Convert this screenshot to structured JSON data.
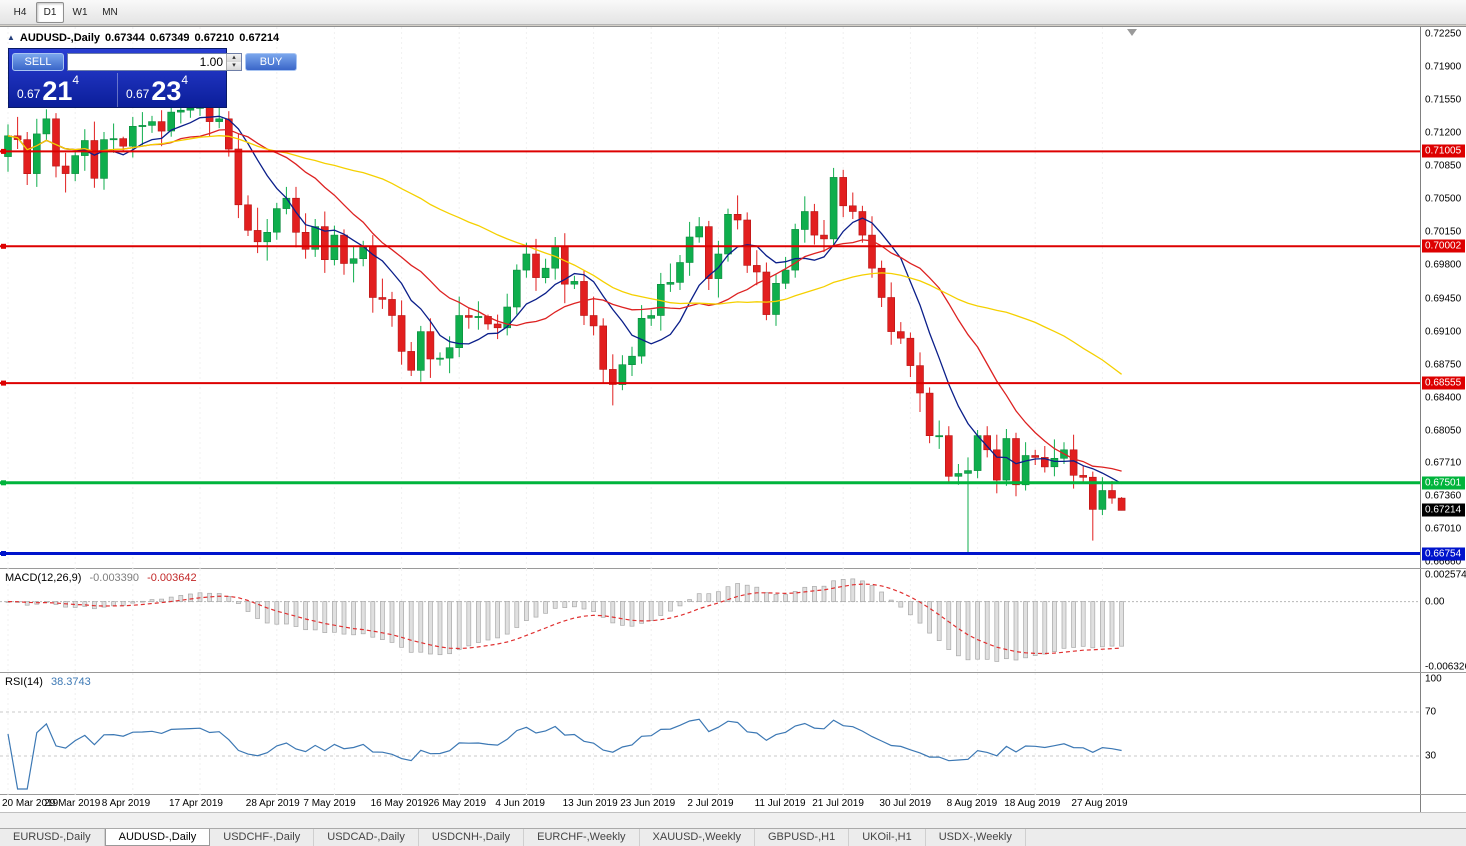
{
  "toolbar": {
    "timeframes": [
      {
        "label": "H4",
        "active": false
      },
      {
        "label": "D1",
        "active": true
      },
      {
        "label": "W1",
        "active": false
      },
      {
        "label": "MN",
        "active": false
      }
    ]
  },
  "icons": {
    "collapse_triangle": "▲",
    "volume_up": "▴",
    "volume_down": "▾"
  },
  "price_chart": {
    "title_symbol": "AUDUSD-,Daily",
    "title_open": "0.67344",
    "title_high": "0.67349",
    "title_low": "0.67210",
    "title_close": "0.67214",
    "axis_ticks": [
      "0.72250",
      "0.71900",
      "0.71550",
      "0.71200",
      "0.70850",
      "0.70500",
      "0.70150",
      "0.69800",
      "0.69450",
      "0.69100",
      "0.68750",
      "0.68400",
      "0.68050",
      "0.67710",
      "0.67360",
      "0.67010",
      "0.66660"
    ],
    "levels": [
      {
        "price": "0.71005",
        "color": "#dd0000",
        "thickness": 2
      },
      {
        "price": "0.70002",
        "color": "#dd0000",
        "thickness": 2
      },
      {
        "price": "0.68555",
        "color": "#dd0000",
        "thickness": 2
      },
      {
        "price": "0.67501",
        "color": "#00b43c",
        "thickness": 3
      },
      {
        "price": "0.66754",
        "color": "#0014cc",
        "thickness": 3
      }
    ],
    "current_price": {
      "label": "0.67214",
      "bg": "#000000"
    }
  },
  "trade_panel": {
    "sell_label": "SELL",
    "buy_label": "BUY",
    "volume": "1.00",
    "bid_small": "0.67",
    "bid_big": "21",
    "bid_sup": "4",
    "ask_small": "0.67",
    "ask_big": "23",
    "ask_sup": "4"
  },
  "macd": {
    "label": "MACD(12,26,9)",
    "value_main": "-0.003390",
    "value_signal": "-0.003642",
    "axis_ticks": [
      "0.002574",
      "0.00",
      "-0.006326"
    ],
    "scale_max": 0.002574,
    "scale_min": -0.006326
  },
  "rsi": {
    "label": "RSI(14)",
    "value": "38.3743",
    "axis_ticks": [
      "100",
      "70",
      "30"
    ],
    "levels": [
      70,
      30
    ]
  },
  "x_axis": {
    "labels": [
      "20 Mar 2019",
      "29 Mar 2019",
      "8 Apr 2019",
      "17 Apr 2019",
      "28 Apr 2019",
      "7 May 2019",
      "16 May 2019",
      "26 May 2019",
      "4 Jun 2019",
      "13 Jun 2019",
      "23 Jun 2019",
      "2 Jul 2019",
      "11 Jul 2019",
      "21 Jul 2019",
      "30 Jul 2019",
      "8 Aug 2019",
      "18 Aug 2019",
      "27 Aug 2019"
    ],
    "indices": [
      0,
      7,
      13,
      20,
      28,
      34,
      41,
      47,
      54,
      61,
      67,
      74,
      81,
      87,
      94,
      101,
      107,
      114
    ]
  },
  "tabs": [
    {
      "label": "EURUSD-,Daily",
      "active": false
    },
    {
      "label": "AUDUSD-,Daily",
      "active": true
    },
    {
      "label": "USDCHF-,Daily",
      "active": false
    },
    {
      "label": "USDCAD-,Daily",
      "active": false
    },
    {
      "label": "USDCNH-,Daily",
      "active": false
    },
    {
      "label": "EURCHF-,Weekly",
      "active": false
    },
    {
      "label": "XAUUSD-,Weekly",
      "active": false
    },
    {
      "label": "GBPUSD-,H1",
      "active": false
    },
    {
      "label": "UKOil-,H1",
      "active": false
    },
    {
      "label": "USDX-,Weekly",
      "active": false
    }
  ],
  "chart_data": {
    "type": "candlestick",
    "symbol": "AUDUSD-",
    "timeframe": "Daily",
    "title": "AUDUSD-,Daily 0.67344 0.67349 0.67210 0.67214",
    "ylim": [
      0.6666,
      0.7225
    ],
    "x_labels": [
      "20 Mar 2019",
      "29 Mar 2019",
      "8 Apr 2019",
      "17 Apr 2019",
      "28 Apr 2019",
      "7 May 2019",
      "16 May 2019",
      "26 May 2019",
      "4 Jun 2019",
      "13 Jun 2019",
      "23 Jun 2019",
      "2 Jul 2019",
      "11 Jul 2019",
      "21 Jul 2019",
      "30 Jul 2019",
      "8 Aug 2019",
      "18 Aug 2019",
      "27 Aug 2019"
    ],
    "horizontal_levels": [
      0.71005,
      0.70002,
      0.68555,
      0.67501,
      0.66754
    ],
    "colors": {
      "up": "#0fae4d",
      "up_edge": "#0a8a3c",
      "down": "#e21f1f",
      "down_edge": "#b51414",
      "macd_histogram_fill": "#e0e0e0",
      "macd_histogram_edge": "#a8a8a8",
      "macd_signal": "#e03030",
      "rsi_line": "#3c78b4"
    },
    "moving_averages": [
      {
        "name": "fast",
        "period": 8,
        "color": "#0b1f8a"
      },
      {
        "name": "medium",
        "period": 16,
        "color": "#dd2222"
      },
      {
        "name": "slow",
        "period": 40,
        "color": "#f5d000"
      }
    ],
    "indicators": [
      {
        "name": "MACD",
        "params": [
          12,
          26,
          9
        ],
        "last_values": [
          -0.00339,
          -0.003642
        ]
      },
      {
        "name": "RSI",
        "params": [
          14
        ],
        "last_value": 38.3743
      }
    ],
    "candles": [
      [
        0.7095,
        0.7129,
        0.7079,
        0.7117
      ],
      [
        0.7117,
        0.7137,
        0.7103,
        0.7113
      ],
      [
        0.7113,
        0.7121,
        0.7065,
        0.7077
      ],
      [
        0.7077,
        0.7135,
        0.7063,
        0.7119
      ],
      [
        0.7119,
        0.7145,
        0.7113,
        0.7135
      ],
      [
        0.7135,
        0.7141,
        0.7073,
        0.7085
      ],
      [
        0.7085,
        0.7099,
        0.7057,
        0.7077
      ],
      [
        0.7077,
        0.7102,
        0.7069,
        0.7096
      ],
      [
        0.7096,
        0.7124,
        0.708,
        0.7112
      ],
      [
        0.7112,
        0.7132,
        0.7062,
        0.7072
      ],
      [
        0.7072,
        0.7121,
        0.706,
        0.7113
      ],
      [
        0.7113,
        0.713,
        0.7099,
        0.7114
      ],
      [
        0.7114,
        0.7116,
        0.71,
        0.7106
      ],
      [
        0.7106,
        0.7137,
        0.7094,
        0.7127
      ],
      [
        0.7127,
        0.7142,
        0.7107,
        0.7128
      ],
      [
        0.7128,
        0.7138,
        0.712,
        0.7132
      ],
      [
        0.7132,
        0.7144,
        0.7106,
        0.7122
      ],
      [
        0.7122,
        0.7152,
        0.7116,
        0.7142
      ],
      [
        0.7142,
        0.7154,
        0.713,
        0.7144
      ],
      [
        0.7144,
        0.7152,
        0.7136,
        0.7146
      ],
      [
        0.7146,
        0.7158,
        0.7138,
        0.7148
      ],
      [
        0.7148,
        0.7152,
        0.7116,
        0.7132
      ],
      [
        0.7132,
        0.7155,
        0.7125,
        0.7135
      ],
      [
        0.7135,
        0.7143,
        0.7095,
        0.7103
      ],
      [
        0.7103,
        0.7119,
        0.703,
        0.7044
      ],
      [
        0.7044,
        0.7054,
        0.7011,
        0.7017
      ],
      [
        0.7017,
        0.7041,
        0.6993,
        0.7005
      ],
      [
        0.7005,
        0.7029,
        0.6985,
        0.7015
      ],
      [
        0.7015,
        0.7046,
        0.7007,
        0.704
      ],
      [
        0.704,
        0.7063,
        0.7034,
        0.7051
      ],
      [
        0.7051,
        0.7063,
        0.6999,
        0.7015
      ],
      [
        0.7015,
        0.7035,
        0.6987,
        0.6997
      ],
      [
        0.6997,
        0.7029,
        0.6989,
        0.7021
      ],
      [
        0.7021,
        0.7037,
        0.6972,
        0.6986
      ],
      [
        0.6986,
        0.7022,
        0.698,
        0.7012
      ],
      [
        0.7012,
        0.7018,
        0.697,
        0.6982
      ],
      [
        0.6982,
        0.7001,
        0.6962,
        0.6987
      ],
      [
        0.6987,
        0.7006,
        0.6979,
        0.7
      ],
      [
        0.7,
        0.7012,
        0.693,
        0.6946
      ],
      [
        0.6946,
        0.6966,
        0.6934,
        0.6944
      ],
      [
        0.6944,
        0.6952,
        0.6915,
        0.6927
      ],
      [
        0.6927,
        0.6943,
        0.6875,
        0.6889
      ],
      [
        0.6889,
        0.6899,
        0.6863,
        0.6869
      ],
      [
        0.6869,
        0.6916,
        0.6857,
        0.691
      ],
      [
        0.691,
        0.6924,
        0.6861,
        0.6881
      ],
      [
        0.6881,
        0.6888,
        0.6874,
        0.6882
      ],
      [
        0.6882,
        0.6905,
        0.6866,
        0.6893
      ],
      [
        0.6893,
        0.6947,
        0.6883,
        0.6927
      ],
      [
        0.6927,
        0.6935,
        0.6913,
        0.6925
      ],
      [
        0.6925,
        0.6942,
        0.6912,
        0.6926
      ],
      [
        0.6926,
        0.6928,
        0.6912,
        0.6918
      ],
      [
        0.6918,
        0.6928,
        0.6902,
        0.6914
      ],
      [
        0.6914,
        0.695,
        0.6906,
        0.6936
      ],
      [
        0.6936,
        0.6981,
        0.6928,
        0.6975
      ],
      [
        0.6975,
        0.7004,
        0.6967,
        0.6992
      ],
      [
        0.6992,
        0.7008,
        0.6953,
        0.6967
      ],
      [
        0.6967,
        0.6987,
        0.6961,
        0.6977
      ],
      [
        0.6977,
        0.701,
        0.6965,
        0.7
      ],
      [
        0.7,
        0.7014,
        0.694,
        0.696
      ],
      [
        0.696,
        0.6969,
        0.6955,
        0.6963
      ],
      [
        0.6963,
        0.6975,
        0.6917,
        0.6927
      ],
      [
        0.6927,
        0.6947,
        0.6906,
        0.6916
      ],
      [
        0.6916,
        0.6924,
        0.6856,
        0.687
      ],
      [
        0.687,
        0.6886,
        0.6832,
        0.6854
      ],
      [
        0.6854,
        0.6885,
        0.6848,
        0.6875
      ],
      [
        0.6875,
        0.6894,
        0.6863,
        0.6884
      ],
      [
        0.6884,
        0.6938,
        0.6876,
        0.6924
      ],
      [
        0.6924,
        0.6933,
        0.6916,
        0.6927
      ],
      [
        0.6927,
        0.6972,
        0.6911,
        0.696
      ],
      [
        0.696,
        0.6982,
        0.6952,
        0.6962
      ],
      [
        0.6962,
        0.6991,
        0.6954,
        0.6983
      ],
      [
        0.6983,
        0.7026,
        0.6969,
        0.701
      ],
      [
        0.701,
        0.7031,
        0.7004,
        0.7021
      ],
      [
        0.7021,
        0.7027,
        0.6954,
        0.6966
      ],
      [
        0.6966,
        0.7006,
        0.6946,
        0.6992
      ],
      [
        0.6992,
        0.704,
        0.6984,
        0.7034
      ],
      [
        0.7034,
        0.7054,
        0.7018,
        0.7028
      ],
      [
        0.7028,
        0.7036,
        0.6972,
        0.698
      ],
      [
        0.698,
        0.6996,
        0.6959,
        0.6973
      ],
      [
        0.6973,
        0.6983,
        0.6922,
        0.6928
      ],
      [
        0.6928,
        0.6971,
        0.6916,
        0.6961
      ],
      [
        0.6961,
        0.6989,
        0.6955,
        0.6975
      ],
      [
        0.6975,
        0.7024,
        0.6967,
        0.7018
      ],
      [
        0.7018,
        0.7053,
        0.7004,
        0.7037
      ],
      [
        0.7037,
        0.7045,
        0.7002,
        0.7012
      ],
      [
        0.7012,
        0.7028,
        0.6994,
        0.7008
      ],
      [
        0.7008,
        0.7083,
        0.7002,
        0.7073
      ],
      [
        0.7073,
        0.7081,
        0.7031,
        0.7043
      ],
      [
        0.7043,
        0.7057,
        0.7029,
        0.7037
      ],
      [
        0.7037,
        0.7043,
        0.7004,
        0.7012
      ],
      [
        0.7012,
        0.7032,
        0.6967,
        0.6977
      ],
      [
        0.6977,
        0.6985,
        0.6936,
        0.6946
      ],
      [
        0.6946,
        0.6962,
        0.6896,
        0.691
      ],
      [
        0.691,
        0.692,
        0.6897,
        0.6903
      ],
      [
        0.6903,
        0.6909,
        0.6862,
        0.6874
      ],
      [
        0.6874,
        0.6888,
        0.6825,
        0.6845
      ],
      [
        0.6845,
        0.6851,
        0.6792,
        0.68
      ],
      [
        0.68,
        0.6816,
        0.6786,
        0.68
      ],
      [
        0.68,
        0.681,
        0.6751,
        0.6757
      ],
      [
        0.6757,
        0.677,
        0.6748,
        0.676
      ],
      [
        0.676,
        0.6777,
        0.6677,
        0.6763
      ],
      [
        0.6763,
        0.6806,
        0.6755,
        0.68
      ],
      [
        0.68,
        0.681,
        0.6777,
        0.6785
      ],
      [
        0.6785,
        0.6801,
        0.6739,
        0.6753
      ],
      [
        0.6753,
        0.6807,
        0.6747,
        0.6797
      ],
      [
        0.6797,
        0.6803,
        0.6736,
        0.6748
      ],
      [
        0.6748,
        0.6793,
        0.6742,
        0.6779
      ],
      [
        0.6779,
        0.6785,
        0.6769,
        0.6777
      ],
      [
        0.6777,
        0.6789,
        0.6761,
        0.6767
      ],
      [
        0.6767,
        0.6796,
        0.6757,
        0.6776
      ],
      [
        0.6776,
        0.6793,
        0.677,
        0.6785
      ],
      [
        0.6785,
        0.6801,
        0.6744,
        0.6758
      ],
      [
        0.6758,
        0.6768,
        0.675,
        0.6756
      ],
      [
        0.6756,
        0.6762,
        0.6689,
        0.6722
      ],
      [
        0.6722,
        0.6756,
        0.6716,
        0.6742
      ],
      [
        0.6742,
        0.6752,
        0.6728,
        0.6734
      ],
      [
        0.6734,
        0.6735,
        0.6721,
        0.6721
      ]
    ]
  }
}
